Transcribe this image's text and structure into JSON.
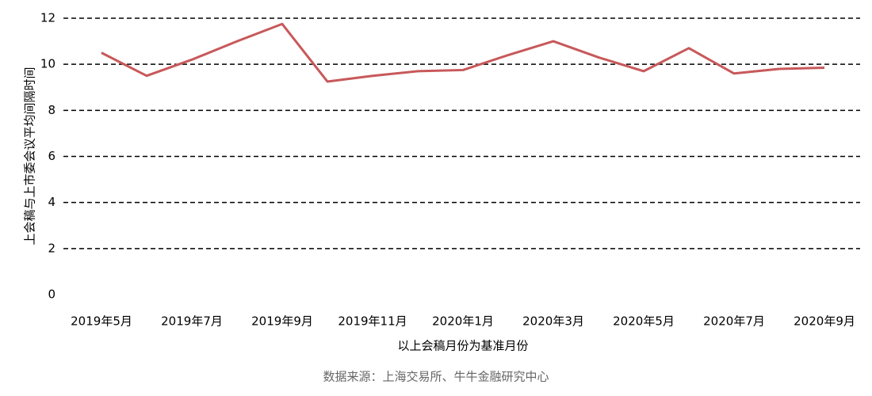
{
  "chart_data": {
    "type": "line",
    "y_label": "上会稿与上市委会议平均间隔时间",
    "x_label": "以上会稿月份为基准月份",
    "source": "数据来源：上海交易所、牛牛金融研究中心",
    "categories": [
      "2019年5月",
      null,
      "2019年7月",
      null,
      "2019年9月",
      null,
      "2019年11月",
      null,
      "2020年1月",
      null,
      "2020年3月",
      null,
      "2020年5月",
      null,
      "2020年7月",
      null,
      "2020年9月"
    ],
    "series": [
      {
        "color": "#c8585a",
        "values": [
          10.5,
          9.5,
          10.2,
          11.0,
          11.75,
          9.25,
          9.5,
          9.7,
          9.75,
          10.4,
          11.0,
          10.3,
          9.7,
          10.7,
          9.6,
          9.8,
          9.85
        ]
      }
    ],
    "ylim": [
      0,
      12
    ],
    "yticks": [
      0,
      2,
      4,
      6,
      8,
      10,
      12
    ],
    "grid": true
  }
}
